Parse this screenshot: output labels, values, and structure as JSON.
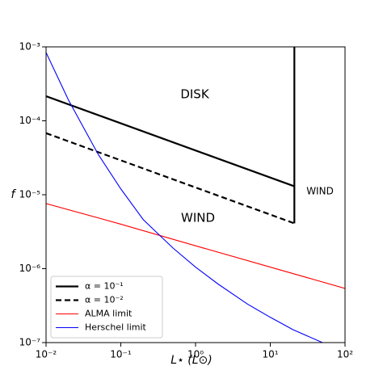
{
  "chart_data": {
    "type": "line",
    "xlabel": "L⋆ (L⊙)",
    "ylabel": "f",
    "xscale": "log",
    "yscale": "log",
    "xlim": [
      0.01,
      100
    ],
    "ylim": [
      1e-07,
      0.001
    ],
    "xticks": [
      {
        "value": 0.01,
        "label": "10⁻²"
      },
      {
        "value": 0.1,
        "label": "10⁻¹"
      },
      {
        "value": 1,
        "label": "10⁰"
      },
      {
        "value": 10,
        "label": "10¹"
      },
      {
        "value": 100,
        "label": "10²"
      }
    ],
    "yticks": [
      {
        "value": 1e-07,
        "label": "10⁻⁷"
      },
      {
        "value": 1e-06,
        "label": "10⁻⁶"
      },
      {
        "value": 1e-05,
        "label": "10⁻⁵"
      },
      {
        "value": 0.0001,
        "label": "10⁻⁴"
      },
      {
        "value": 0.001,
        "label": "10⁻³"
      }
    ],
    "legend": "lower left",
    "annotations": [
      "DISK",
      "WIND",
      "WIND"
    ],
    "series": [
      {
        "name": "α = 10⁻¹",
        "color": "#000000",
        "linestyle": "solid",
        "linewidth": 2,
        "x": [
          0.01,
          21,
          21,
          21
        ],
        "y": [
          0.000215,
          1.3e-05,
          4.1e-06,
          0.001
        ]
      },
      {
        "name": "α = 10⁻²",
        "color": "#000000",
        "linestyle": "dashed",
        "linewidth": 2,
        "x": [
          0.01,
          21
        ],
        "y": [
          6.8e-05,
          4.1e-06
        ]
      },
      {
        "name": "ALMA limit",
        "color": "#ff0000",
        "linestyle": "solid",
        "linewidth": 1,
        "x": [
          0.01,
          0.1,
          1,
          10,
          100
        ],
        "y": [
          7.6e-06,
          4e-06,
          2.04e-06,
          1.05e-06,
          5.4e-07
        ]
      },
      {
        "name": "Herschel limit",
        "color": "#0000ff",
        "linestyle": "solid",
        "linewidth": 1,
        "x": [
          0.01,
          0.02,
          0.05,
          0.1,
          0.2,
          0.5,
          1,
          2,
          5,
          10,
          20,
          50
        ],
        "y": [
          0.00084,
          0.00019,
          3.5e-05,
          1.2e-05,
          4.6e-06,
          1.9e-06,
          1.05e-06,
          6.2e-07,
          3.3e-07,
          2.2e-07,
          1.5e-07,
          1e-07
        ]
      }
    ]
  }
}
